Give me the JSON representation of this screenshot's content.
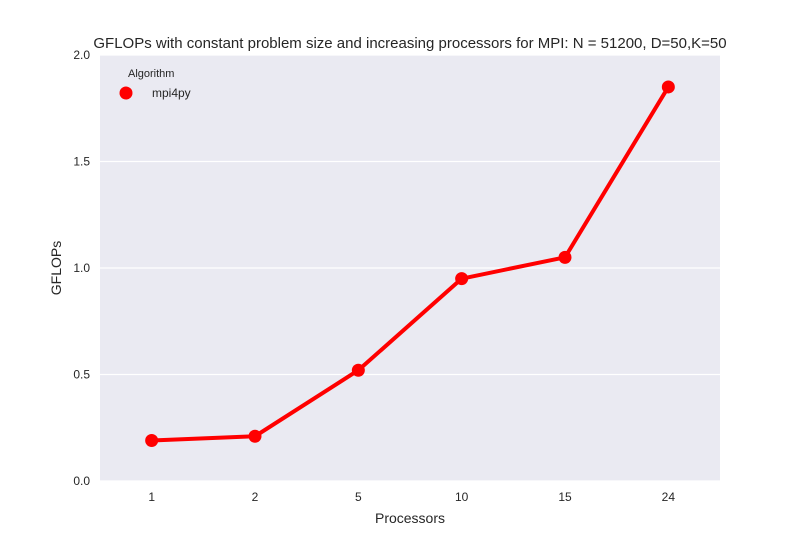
{
  "chart_data": {
    "type": "line",
    "title": "GFLOPs with constant problem size and increasing processors for MPI: N = 51200, D=50,K=50",
    "xlabel": "Processors",
    "ylabel": "GFLOPs",
    "categories": [
      "1",
      "2",
      "5",
      "10",
      "15",
      "24"
    ],
    "ylim": [
      0,
      2.0
    ],
    "yticks": [
      "0.0",
      "0.5",
      "1.0",
      "1.5",
      "2.0"
    ],
    "grid": true,
    "legend": {
      "title": "Algorithm",
      "placement": "top-left"
    },
    "series": [
      {
        "name": "mpi4py",
        "color": "#ff0000",
        "values": [
          0.19,
          0.21,
          0.52,
          0.95,
          1.05,
          1.85
        ]
      }
    ],
    "colors": {
      "plot_background": "#eaeaf2",
      "grid": "#ffffff",
      "text": "#262626"
    }
  }
}
